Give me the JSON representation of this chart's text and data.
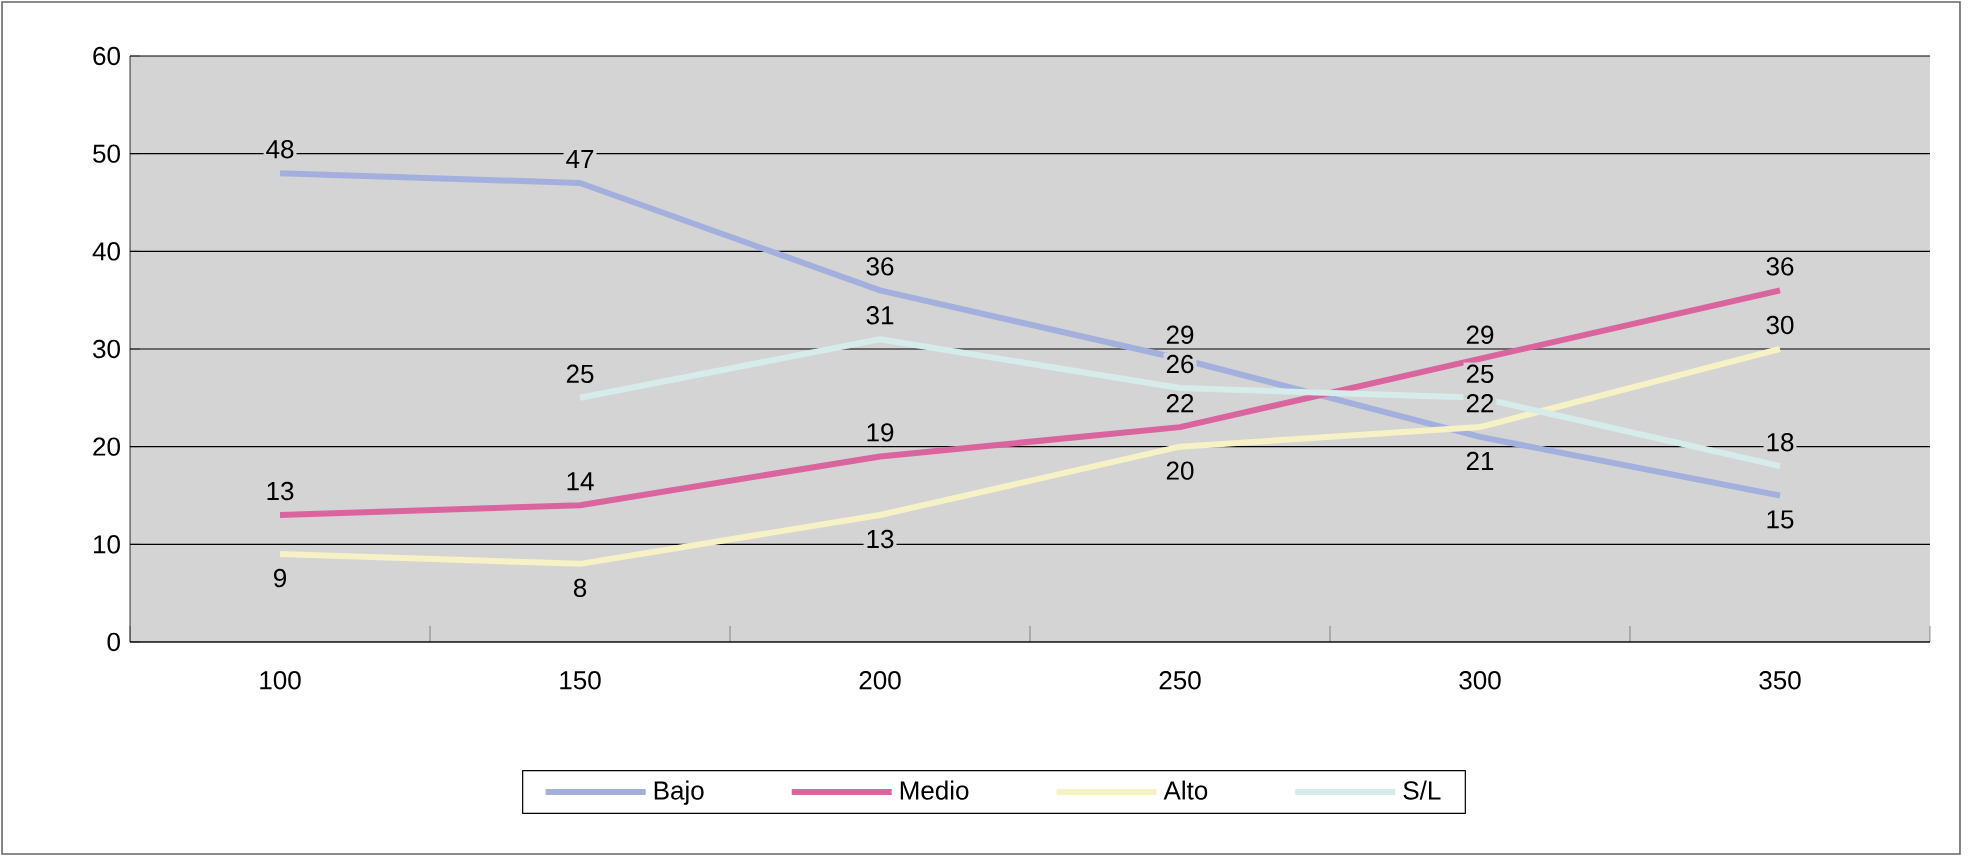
{
  "chart_data": {
    "type": "line",
    "categories": [
      "100",
      "150",
      "200",
      "250",
      "300",
      "350"
    ],
    "series": [
      {
        "name": "Bajo",
        "color": "#a3b0de",
        "values": [
          48,
          47,
          36,
          29,
          21,
          15
        ]
      },
      {
        "name": "Medio",
        "color": "#d9649e",
        "values": [
          13,
          14,
          19,
          22,
          29,
          36
        ]
      },
      {
        "name": "Alto",
        "color": "#f6f2c6",
        "values": [
          9,
          8,
          13,
          20,
          22,
          30
        ]
      },
      {
        "name": "S/L",
        "color": "#d6ecea",
        "values": [
          null,
          25,
          31,
          26,
          25,
          18
        ]
      }
    ],
    "ylim": [
      0,
      60
    ],
    "yticks": [
      0,
      10,
      20,
      30,
      40,
      50,
      60
    ],
    "grid": "y",
    "legend": "bottom",
    "data_labels": true,
    "marker": "none",
    "line_style": "solid"
  }
}
